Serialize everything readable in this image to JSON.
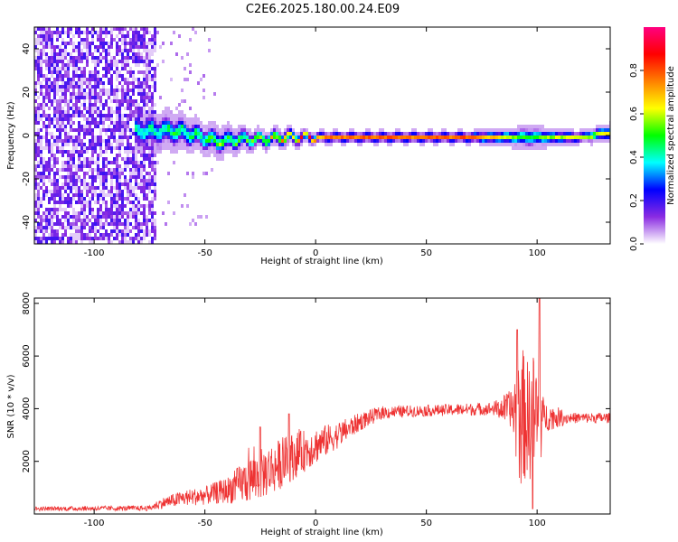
{
  "chart_data": [
    {
      "type": "heatmap",
      "title": "C2E6.2025.180.00.24.E09",
      "xlabel": "Height of straight line (km)",
      "ylabel": "Frequency (Hz)",
      "xlim": [
        -127,
        133
      ],
      "ylim": [
        -50,
        50
      ],
      "x_ticks": [
        -100,
        -50,
        0,
        50,
        100
      ],
      "x_tick_labels": [
        "-100",
        "-50",
        "0",
        "50",
        "100"
      ],
      "y_ticks": [
        -40,
        -20,
        0,
        20,
        40
      ],
      "y_tick_labels": [
        "-40",
        "-20",
        "0",
        "20",
        "40"
      ],
      "colorbar": {
        "label": "Normalized spectral amplitude",
        "range": [
          0,
          1
        ],
        "ticks": [
          0.0,
          0.2,
          0.4,
          0.6,
          0.8
        ],
        "tick_labels": [
          "0.0",
          "0.2",
          "0.4",
          "0.6",
          "0.8"
        ],
        "colormap": [
          "#ffffff",
          "#8a2be2",
          "#0000ff",
          "#00ffff",
          "#00ff00",
          "#ffff00",
          "#ff8000",
          "#ff0000",
          "#ff0080"
        ]
      },
      "noise_region_x": [
        -127,
        -72
      ],
      "sparse_region_x": [
        -72,
        -45
      ],
      "signal_band": [
        {
          "x": -77,
          "center": 3,
          "halfwidth": 6,
          "peak": 0.45
        },
        {
          "x": -65,
          "center": 3,
          "halfwidth": 6,
          "peak": 0.5
        },
        {
          "x": -55,
          "center": 1,
          "halfwidth": 5,
          "peak": 0.5
        },
        {
          "x": -45,
          "center": -2,
          "halfwidth": 5,
          "peak": 0.55
        },
        {
          "x": -35,
          "center": -1,
          "halfwidth": 4,
          "peak": 0.55
        },
        {
          "x": -25,
          "center": -1,
          "halfwidth": 3,
          "peak": 0.6
        },
        {
          "x": -15,
          "center": 0,
          "halfwidth": 3,
          "peak": 0.75
        },
        {
          "x": -5,
          "center": 0,
          "halfwidth": 2,
          "peak": 0.85
        },
        {
          "x": 10,
          "center": 0,
          "halfwidth": 2,
          "peak": 0.95
        },
        {
          "x": 40,
          "center": 0,
          "halfwidth": 2,
          "peak": 1.0
        },
        {
          "x": 70,
          "center": 0,
          "halfwidth": 2,
          "peak": 1.0
        },
        {
          "x": 88,
          "center": 0,
          "halfwidth": 3,
          "peak": 0.7
        },
        {
          "x": 95,
          "center": 0,
          "halfwidth": 4,
          "peak": 0.6
        },
        {
          "x": 105,
          "center": 0,
          "halfwidth": 3,
          "peak": 0.7
        },
        {
          "x": 120,
          "center": 0,
          "halfwidth": 2,
          "peak": 0.8
        },
        {
          "x": 130,
          "center": 2,
          "halfwidth": 3,
          "peak": 0.75
        }
      ]
    },
    {
      "type": "line",
      "xlabel": "Height of straight line (km)",
      "ylabel": "SNR (10 * v/v)",
      "xlim": [
        -127,
        133
      ],
      "ylim": [
        0,
        8200
      ],
      "x_ticks": [
        -100,
        -50,
        0,
        50,
        100
      ],
      "x_tick_labels": [
        "-100",
        "-50",
        "0",
        "50",
        "100"
      ],
      "y_ticks": [
        2000,
        4000,
        6000,
        8000
      ],
      "y_tick_labels": [
        "2000",
        "4000",
        "6000",
        "8000"
      ],
      "color": "#ee3333",
      "envelope": [
        {
          "x": -127,
          "base": 200,
          "amp": 80
        },
        {
          "x": -75,
          "base": 220,
          "amp": 100
        },
        {
          "x": -70,
          "base": 400,
          "amp": 200
        },
        {
          "x": -60,
          "base": 600,
          "amp": 300
        },
        {
          "x": -50,
          "base": 700,
          "amp": 350
        },
        {
          "x": -40,
          "base": 900,
          "amp": 500
        },
        {
          "x": -30,
          "base": 1300,
          "amp": 900
        },
        {
          "x": -20,
          "base": 1700,
          "amp": 1000
        },
        {
          "x": -10,
          "base": 2200,
          "amp": 900
        },
        {
          "x": 0,
          "base": 2600,
          "amp": 700
        },
        {
          "x": 10,
          "base": 3000,
          "amp": 500
        },
        {
          "x": 20,
          "base": 3500,
          "amp": 350
        },
        {
          "x": 30,
          "base": 3850,
          "amp": 250
        },
        {
          "x": 40,
          "base": 3900,
          "amp": 220
        },
        {
          "x": 60,
          "base": 3950,
          "amp": 220
        },
        {
          "x": 80,
          "base": 4000,
          "amp": 250
        },
        {
          "x": 88,
          "base": 4000,
          "amp": 700
        },
        {
          "x": 92,
          "base": 3800,
          "amp": 2800
        },
        {
          "x": 96,
          "base": 3600,
          "amp": 2200
        },
        {
          "x": 100,
          "base": 3500,
          "amp": 3000
        },
        {
          "x": 103,
          "base": 3700,
          "amp": 600
        },
        {
          "x": 115,
          "base": 3650,
          "amp": 200
        },
        {
          "x": 133,
          "base": 3650,
          "amp": 200
        }
      ],
      "peaks": [
        {
          "x": -25,
          "y": 3300
        },
        {
          "x": -12,
          "y": 3800
        },
        {
          "x": 91,
          "y": 7000
        },
        {
          "x": 98,
          "y": 200
        },
        {
          "x": 101,
          "y": 8200
        }
      ]
    }
  ]
}
